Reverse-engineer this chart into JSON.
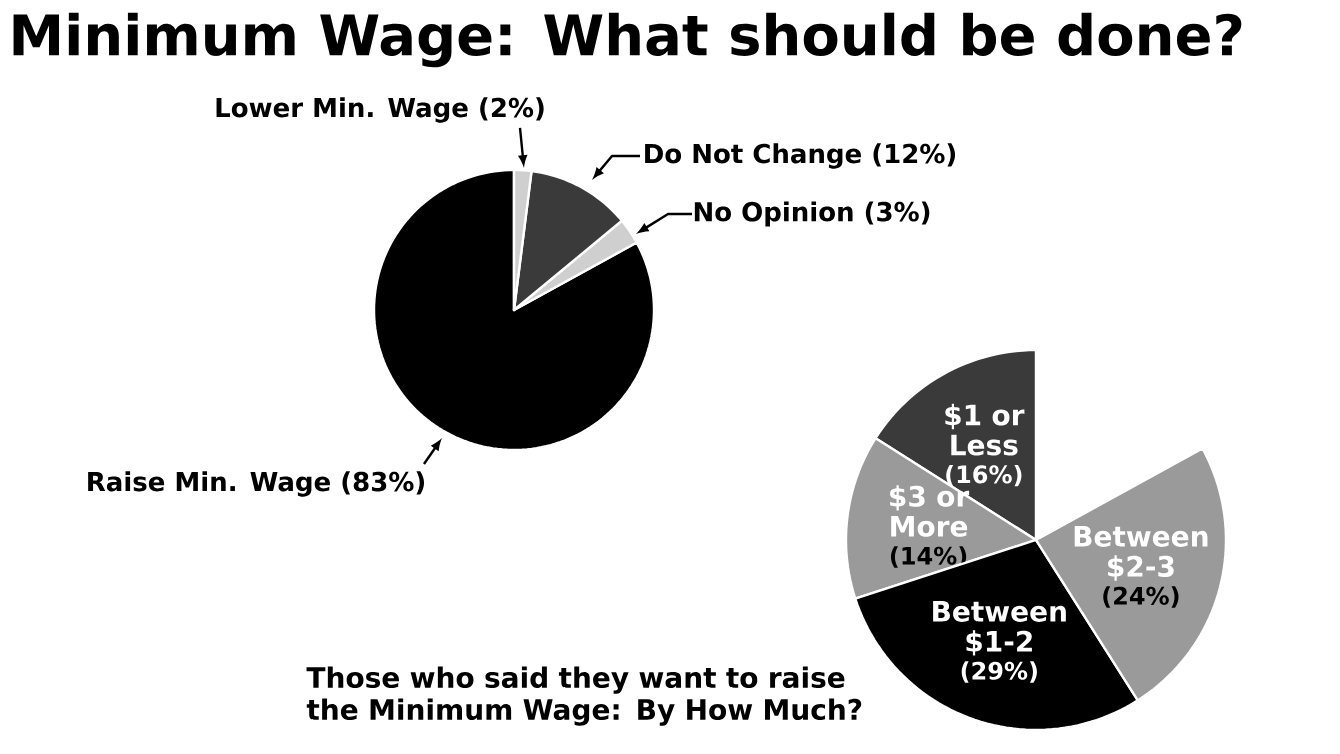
{
  "chart_data": [
    {
      "type": "pie",
      "title": "Minimum Wage: What should be done?",
      "categories": [
        "Raise Min. Wage",
        "No Opinion",
        "Do Not Change",
        "Lower Min. Wage"
      ],
      "values": [
        83,
        3,
        12,
        2
      ],
      "value_labels": [
        "(83%)",
        "(3%)",
        "(12%)",
        "(2%)"
      ],
      "colors": [
        "#000000",
        "#cfcfcf",
        "#3a3a3a",
        "#cfcfcf"
      ]
    },
    {
      "type": "pie",
      "title": "Those who said they want to raise the Minimum Wage: By How Much?",
      "categories": [
        "$1 or Less",
        "$3 or More",
        "Between $1-2",
        "Between $2-3"
      ],
      "values": [
        16,
        14,
        29,
        24
      ],
      "value_labels": [
        "(16%)",
        "(14%)",
        "(29%)",
        "(24%)"
      ],
      "colors": [
        "#3a3a3a",
        "#9a9a9a",
        "#000000",
        "#9a9a9a"
      ]
    }
  ]
}
